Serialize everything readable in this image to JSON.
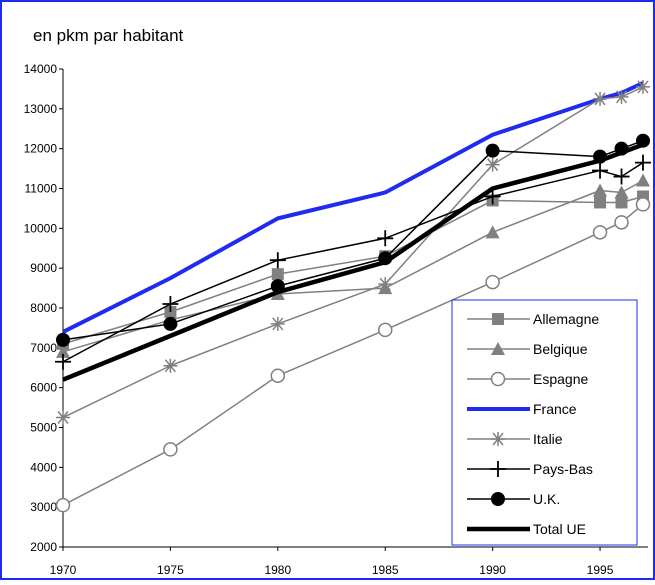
{
  "chart_data": {
    "type": "line",
    "title": "en pkm par habitant",
    "x": [
      1970,
      1975,
      1980,
      1985,
      1990,
      1995,
      1996,
      1997
    ],
    "xlim": [
      1970,
      1997
    ],
    "xticks": [
      1970,
      1975,
      1980,
      1985,
      1990,
      1995
    ],
    "ylim": [
      2000,
      14000
    ],
    "yticks": [
      2000,
      3000,
      4000,
      5000,
      6000,
      7000,
      8000,
      9000,
      10000,
      11000,
      12000,
      13000,
      14000
    ],
    "grid": false,
    "legend": "lower right",
    "series": [
      {
        "name": "Allemagne",
        "color": "#808080",
        "marker": "square",
        "width": 1.5,
        "values": [
          7100,
          7900,
          8850,
          9300,
          10700,
          10650,
          10650,
          10800
        ]
      },
      {
        "name": "Belgique",
        "color": "#808080",
        "marker": "triangle",
        "width": 1.5,
        "values": [
          6900,
          7700,
          8350,
          8500,
          9900,
          10950,
          10900,
          11200
        ]
      },
      {
        "name": "Espagne",
        "color": "#808080",
        "marker": "open-circle",
        "width": 1.5,
        "values": [
          3050,
          4450,
          6300,
          7450,
          8650,
          9900,
          10150,
          10600
        ]
      },
      {
        "name": "France",
        "color": "#1f2cf0",
        "marker": "none",
        "width": 4,
        "values": [
          7400,
          8750,
          10250,
          10900,
          12350,
          13250,
          13400,
          13650
        ]
      },
      {
        "name": "Italie",
        "color": "#808080",
        "marker": "asterisk",
        "width": 1.5,
        "values": [
          5250,
          6550,
          7600,
          8600,
          11600,
          13250,
          13300,
          13550
        ]
      },
      {
        "name": "Pays-Bas",
        "color": "#000000",
        "marker": "plus",
        "width": 1.5,
        "values": [
          6650,
          8100,
          9200,
          9750,
          10800,
          11450,
          11300,
          11650
        ]
      },
      {
        "name": "U.K.",
        "color": "#000000",
        "marker": "filled-circle",
        "width": 1.5,
        "values": [
          7200,
          7600,
          8550,
          9250,
          11950,
          11800,
          12000,
          12200
        ]
      },
      {
        "name": "Total UE",
        "color": "#000000",
        "marker": "none",
        "width": 4.5,
        "values": [
          6200,
          7300,
          8400,
          9150,
          11000,
          11700,
          11900,
          12100
        ]
      }
    ]
  }
}
